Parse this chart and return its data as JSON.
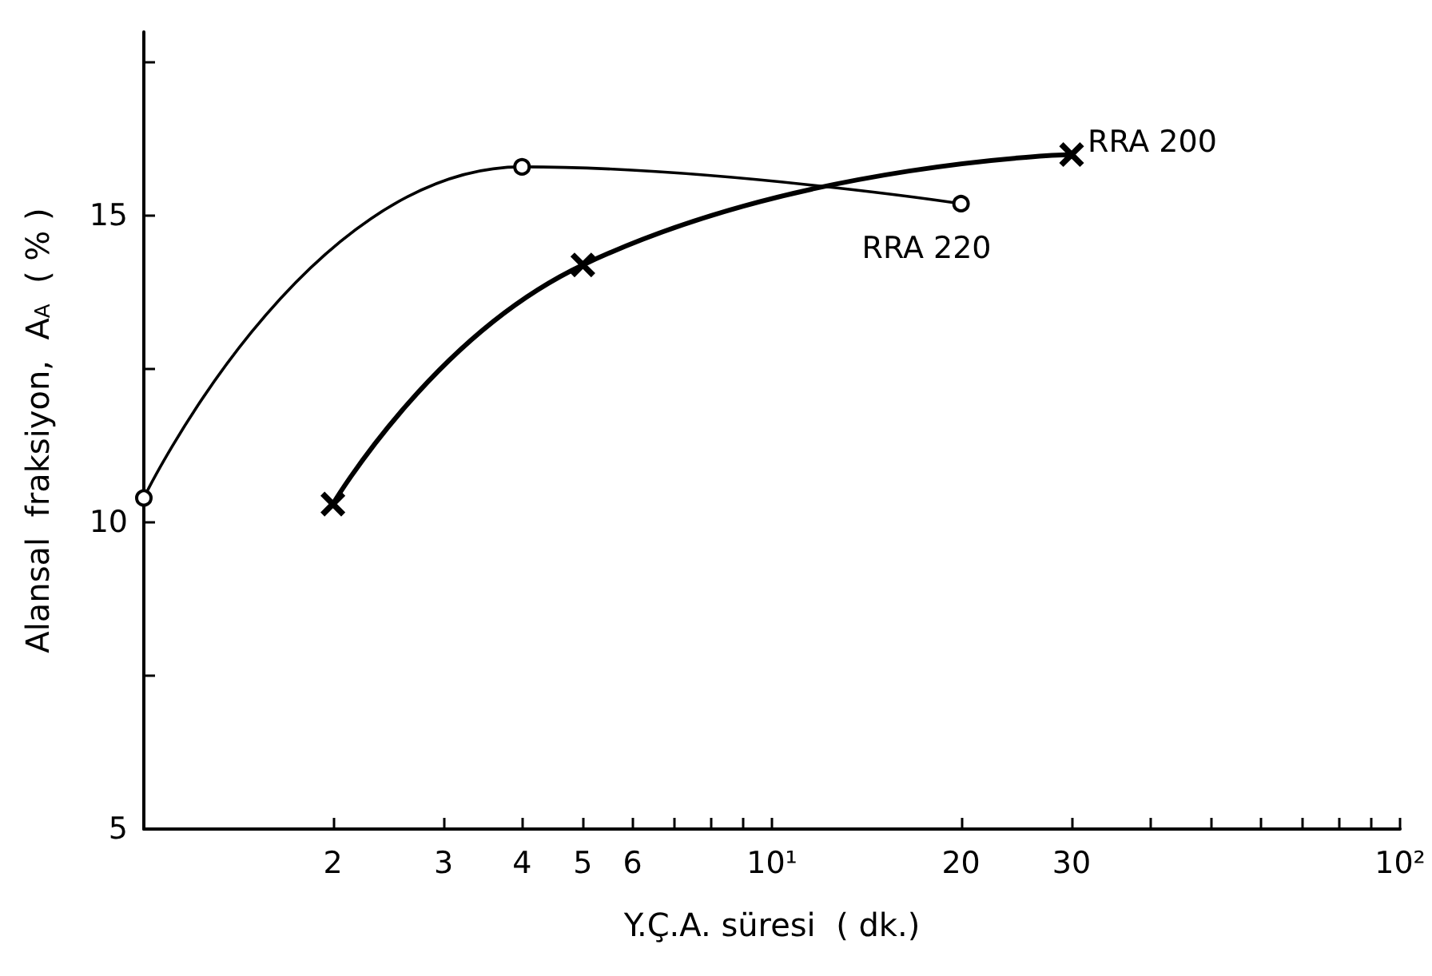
{
  "chart_data": {
    "type": "line",
    "xlabel": "Y.Ç.A. süresi  ( dk.)",
    "ylabel": "Alansal  fraksiyon,  A$_{A}$  ( % )",
    "log": "x",
    "grid": false,
    "legend": false,
    "line_style": "solid",
    "xlim": [
      1,
      100
    ],
    "ylim": [
      5,
      18
    ],
    "xticks": [
      {
        "value": 1,
        "label": null
      },
      2,
      3,
      4,
      5,
      6,
      {
        "value": 7,
        "label": null
      },
      {
        "value": 8,
        "label": null
      },
      {
        "value": 9,
        "label": null
      },
      {
        "value": 10,
        "label": "10¹"
      },
      20,
      30,
      {
        "value": 40,
        "label": null
      },
      {
        "value": 50,
        "label": null
      },
      {
        "value": 60,
        "label": null
      },
      {
        "value": 70,
        "label": null
      },
      {
        "value": 80,
        "label": null
      },
      {
        "value": 90,
        "label": null
      },
      {
        "value": 100,
        "label": "10²"
      }
    ],
    "yticks": [
      5,
      {
        "value": 7.5,
        "label": null
      },
      10,
      {
        "value": 12.5,
        "label": null
      },
      15,
      {
        "value": 17.5,
        "label": null
      }
    ],
    "series": [
      {
        "name": "RRA 220",
        "color": "#000000",
        "marker": "circle",
        "x": [
          1,
          4,
          20
        ],
        "values": [
          10.4,
          15.8,
          15.2
        ]
      },
      {
        "name": "RRA 200",
        "color": "#000000",
        "marker": "cross",
        "x": [
          2,
          5,
          30
        ],
        "values": [
          10.3,
          14.2,
          16.0
        ]
      }
    ]
  }
}
